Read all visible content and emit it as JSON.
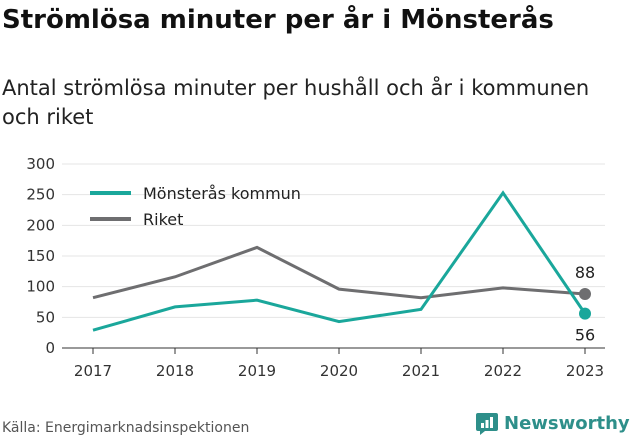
{
  "title": "Strömlösa minuter per år i Mönsterås",
  "subtitle": "Antal strömlösa minuter per hushåll och år i kommunen och riket",
  "source": "Källa: Energimarknadsinspektionen",
  "brand": "Newsworthy",
  "colors": {
    "monsteras": "#1aa79b",
    "riket": "#6e6e70",
    "brand": "#2e8f8a"
  },
  "icons": {
    "brand": "newsworthy-logo-icon"
  },
  "chart_data": {
    "type": "line",
    "categories": [
      "2017",
      "2018",
      "2019",
      "2020",
      "2021",
      "2022",
      "2023"
    ],
    "series": [
      {
        "name": "Mönsterås kommun",
        "values": [
          29,
          67,
          78,
          43,
          63,
          253,
          56
        ],
        "color": "#1aa79b"
      },
      {
        "name": "Riket",
        "values": [
          82,
          116,
          164,
          96,
          82,
          98,
          88
        ],
        "color": "#6e6e70"
      }
    ],
    "end_labels": [
      "56",
      "88"
    ],
    "y_ticks": [
      "0",
      "50",
      "100",
      "150",
      "200",
      "250",
      "300"
    ],
    "ylim": [
      0,
      300
    ],
    "legend_position": "top-left",
    "grid": "horizontal"
  }
}
